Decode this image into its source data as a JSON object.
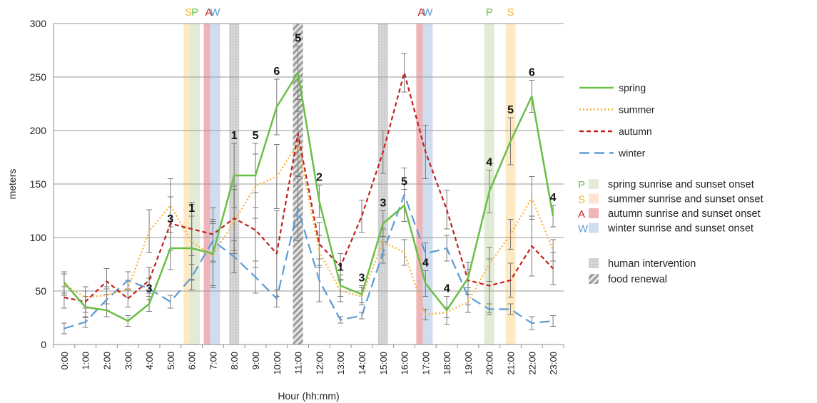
{
  "chart_data": {
    "type": "line",
    "ylabel": "meters",
    "xlabel": "Hour (hh:mm)",
    "ylim": [
      0,
      300
    ],
    "yticks": [
      0,
      50,
      100,
      150,
      200,
      250,
      300
    ],
    "categories": [
      "0:00",
      "1:00",
      "2:00",
      "3:00",
      "4:00",
      "5:00",
      "6:00",
      "7:00",
      "8:00",
      "9:00",
      "10:00",
      "11:00",
      "12:00",
      "13:00",
      "14:00",
      "15:00",
      "16:00",
      "17:00",
      "18:00",
      "19:00",
      "20:00",
      "21:00",
      "22:00",
      "23:00"
    ],
    "grid": "horizontal",
    "legend_position": "right",
    "series": [
      {
        "name": "spring",
        "color": "#6abf45",
        "dash": "solid",
        "values": [
          58,
          35,
          32,
          22,
          38,
          90,
          90,
          85,
          158,
          158,
          222,
          254,
          134,
          55,
          47,
          113,
          130,
          57,
          32,
          62,
          143,
          190,
          232,
          120
        ],
        "err": [
          10,
          10,
          6,
          5,
          7,
          20,
          30,
          30,
          30,
          30,
          26,
          25,
          15,
          10,
          8,
          12,
          15,
          12,
          13,
          15,
          20,
          22,
          15,
          10
        ]
      },
      {
        "name": "summer",
        "color": "#f5b335",
        "dash": "dotted",
        "values": [
          56,
          44,
          46,
          52,
          106,
          130,
          96,
          83,
          115,
          148,
          157,
          188,
          87,
          50,
          45,
          96,
          86,
          28,
          30,
          40,
          75,
          103,
          137,
          88
        ],
        "err": [
          10,
          10,
          8,
          8,
          20,
          25,
          35,
          30,
          30,
          30,
          30,
          30,
          15,
          10,
          8,
          12,
          12,
          5,
          5,
          10,
          16,
          14,
          20,
          10
        ]
      },
      {
        "name": "autumn",
        "color": "#c0201e",
        "dash": "dashed",
        "values": [
          44,
          40,
          59,
          43,
          60,
          113,
          108,
          103,
          118,
          107,
          85,
          197,
          94,
          73,
          120,
          180,
          254,
          180,
          126,
          60,
          55,
          60,
          92,
          71
        ],
        "err": [
          10,
          10,
          12,
          8,
          12,
          25,
          25,
          25,
          30,
          35,
          40,
          40,
          20,
          12,
          15,
          20,
          18,
          25,
          18,
          10,
          25,
          16,
          28,
          15
        ]
      },
      {
        "name": "winter",
        "color": "#5b9bd5",
        "dash": "longdash",
        "values": [
          15,
          21,
          42,
          60,
          52,
          40,
          63,
          97,
          82,
          63,
          43,
          127,
          60,
          23,
          27,
          86,
          140,
          85,
          90,
          45,
          33,
          33,
          20,
          22
        ],
        "err": [
          5,
          5,
          10,
          8,
          10,
          6,
          12,
          20,
          15,
          15,
          8,
          30,
          20,
          3,
          3,
          10,
          25,
          10,
          12,
          8,
          5,
          5,
          6,
          5
        ]
      }
    ],
    "counts": [
      {
        "series": "spring",
        "hour": "4:00",
        "label": "3"
      },
      {
        "series": "spring",
        "hour": "5:00",
        "label": "3"
      },
      {
        "series": "spring",
        "hour": "6:00",
        "label": "1"
      },
      {
        "series": "spring",
        "hour": "8:00",
        "label": "1"
      },
      {
        "series": "spring",
        "hour": "9:00",
        "label": "5"
      },
      {
        "series": "spring",
        "hour": "10:00",
        "label": "6"
      },
      {
        "series": "spring",
        "hour": "11:00",
        "label": "5"
      },
      {
        "series": "spring",
        "hour": "12:00",
        "label": "2"
      },
      {
        "series": "spring",
        "hour": "13:00",
        "label": "1"
      },
      {
        "series": "spring",
        "hour": "14:00",
        "label": "3"
      },
      {
        "series": "spring",
        "hour": "15:00",
        "label": "3"
      },
      {
        "series": "spring",
        "hour": "16:00",
        "label": "5"
      },
      {
        "series": "spring",
        "hour": "17:00",
        "label": "4"
      },
      {
        "series": "spring",
        "hour": "18:00",
        "label": "4"
      },
      {
        "series": "spring",
        "hour": "20:00",
        "label": "4"
      },
      {
        "series": "spring",
        "hour": "21:00",
        "label": "5"
      },
      {
        "series": "spring",
        "hour": "22:00",
        "label": "6"
      },
      {
        "series": "spring",
        "hour": "23:00",
        "label": "4"
      }
    ],
    "bands": [
      {
        "x": 5.85,
        "type": "summer",
        "top_label": "S"
      },
      {
        "x": 6.15,
        "type": "spring",
        "top_label": "P"
      },
      {
        "x": 6.8,
        "type": "autumn",
        "top_label": "A"
      },
      {
        "x": 7.1,
        "type": "winter",
        "top_label": "W"
      },
      {
        "x": 8.0,
        "type": "human",
        "top_label": ""
      },
      {
        "x": 11.0,
        "type": "food",
        "top_label": ""
      },
      {
        "x": 15.0,
        "type": "human",
        "top_label": ""
      },
      {
        "x": 16.8,
        "type": "autumn",
        "top_label": "A"
      },
      {
        "x": 17.1,
        "type": "winter",
        "top_label": "W"
      },
      {
        "x": 20.0,
        "type": "spring",
        "top_label": "P"
      },
      {
        "x": 21.0,
        "type": "summer",
        "top_label": "S"
      }
    ],
    "band_colors": {
      "spring": "#e2ebd5",
      "summer": "#fde9c2",
      "autumn": "#eeb4b8",
      "winter": "#cfddef",
      "human": "#cfcfcf",
      "food": "#bfbfbf"
    },
    "legend_series": [
      "spring",
      "summer",
      "autumn",
      "winter"
    ],
    "legend_bands": [
      {
        "letter": "P",
        "letter_color": "#6abf45",
        "swatch": "#e2ebd5",
        "label": "spring sunrise and sunset onset"
      },
      {
        "letter": "S",
        "letter_color": "#f5b335",
        "swatch": "#fde3d0",
        "label": "summer sunrise and sunset onset"
      },
      {
        "letter": "A",
        "letter_color": "#c0201e",
        "swatch": "#eeb4b8",
        "label": "autumn sunrise and sunset onset"
      },
      {
        "letter": "W",
        "letter_color": "#5b9bd5",
        "swatch": "#cfddef",
        "label": "winter sunrise and sunset onset"
      }
    ],
    "legend_events": [
      {
        "type": "human",
        "label": "human intervention"
      },
      {
        "type": "food",
        "label": "food renewal"
      }
    ]
  }
}
